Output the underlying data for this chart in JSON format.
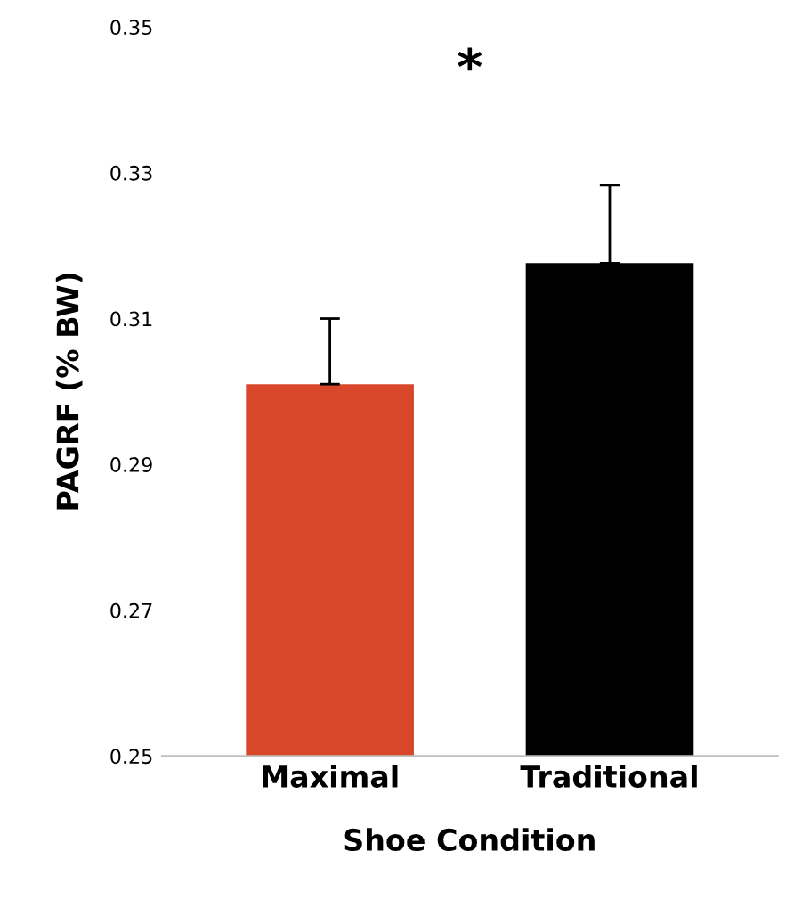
{
  "chart_data": {
    "type": "bar",
    "xlabel": "Shoe Condition",
    "ylabel": "PAGRF (% BW)",
    "categories": [
      "Maximal",
      "Traditional"
    ],
    "values": [
      0.301,
      0.3176
    ],
    "colors": [
      "#d9472b",
      "#000000"
    ],
    "errors": [
      0.009,
      0.0107
    ],
    "ylim": [
      0.25,
      0.35
    ],
    "yticks": [
      {
        "value": 0.25,
        "label": "0.25"
      },
      {
        "value": 0.27,
        "label": "0.27"
      },
      {
        "value": 0.29,
        "label": "0.29"
      },
      {
        "value": 0.31,
        "label": "0.31"
      },
      {
        "value": 0.33,
        "label": "0.33"
      },
      {
        "value": 0.35,
        "label": "0.35"
      }
    ],
    "annotations": [
      "*"
    ],
    "grid": false,
    "legend": false
  }
}
